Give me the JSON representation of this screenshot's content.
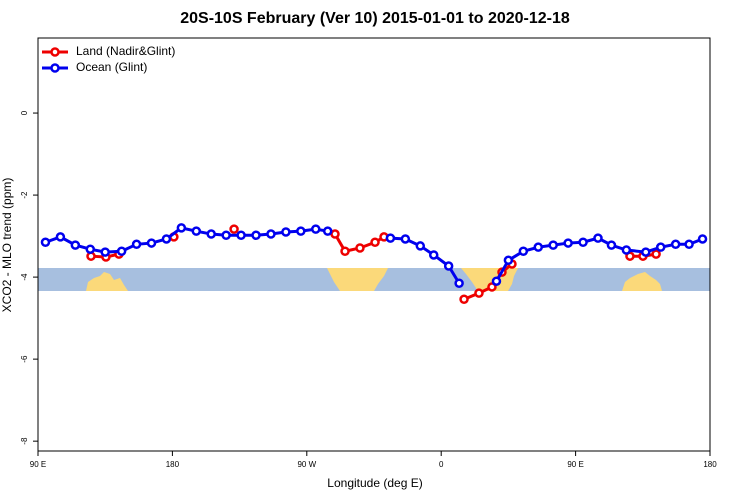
{
  "chart_data": {
    "type": "line",
    "title": "20S-10S February (Ver 10)   2015-01-01 to 2020-12-18",
    "x_label": "Longitude (deg E)",
    "y_label": "XCO2 - MLO trend (ppm)",
    "xlim": [
      90,
      540
    ],
    "ylim": [
      -8.24,
      1.83
    ],
    "xticks": [
      {
        "value": 90,
        "label": "90 E"
      },
      {
        "value": 180,
        "label": "180"
      },
      {
        "value": 270,
        "label": "90 W"
      },
      {
        "value": 360,
        "label": "0"
      },
      {
        "value": 450,
        "label": "90 E"
      },
      {
        "value": 540,
        "label": "180"
      }
    ],
    "yticks": [
      0,
      -2,
      -4,
      -6,
      -8
    ],
    "legend": "topleft",
    "series": [
      {
        "name": "Land (Nadir&Glint)",
        "color": "#ee0000",
        "x": [
          125.5,
          135.5,
          144.2,
          160,
          181,
          200,
          221.3,
          250,
          288.9,
          295.6,
          305.6,
          315.7,
          321.7,
          350,
          375.3,
          385.3,
          394,
          400.7,
          407.4,
          450,
          486.4,
          495.1,
          503.9
        ],
        "values": [
          -3.49,
          -3.51,
          -3.44,
          null,
          -3.02,
          null,
          -2.83,
          null,
          -2.95,
          -3.37,
          -3.29,
          -3.15,
          -3.02,
          null,
          -4.54,
          -4.39,
          -4.24,
          -3.88,
          -3.68,
          null,
          -3.49,
          -3.49,
          -3.44
        ]
      },
      {
        "name": "Ocean (Glint)",
        "color": "#0000ee",
        "x": [
          95,
          105,
          115,
          125,
          135,
          146,
          156,
          166,
          176,
          186,
          196,
          206,
          216,
          226,
          236,
          246,
          256,
          266,
          276,
          284,
          305,
          326,
          336,
          346,
          355,
          365,
          372,
          385,
          397,
          405,
          415,
          425,
          435,
          445,
          455,
          465,
          474,
          484,
          497,
          507,
          517,
          526,
          535
        ],
        "values": [
          -3.15,
          -3.02,
          -3.22,
          -3.32,
          -3.39,
          -3.37,
          -3.2,
          -3.17,
          -3.07,
          -2.8,
          -2.88,
          -2.95,
          -2.98,
          -2.98,
          -2.98,
          -2.95,
          -2.9,
          -2.88,
          -2.83,
          -2.88,
          null,
          -3.05,
          -3.07,
          -3.24,
          -3.46,
          -3.73,
          -4.15,
          null,
          -4.1,
          -3.59,
          -3.37,
          -3.27,
          -3.22,
          -3.17,
          -3.15,
          -3.05,
          -3.22,
          -3.34,
          -3.39,
          -3.27,
          -3.2,
          -3.2,
          -3.07
        ]
      }
    ]
  }
}
